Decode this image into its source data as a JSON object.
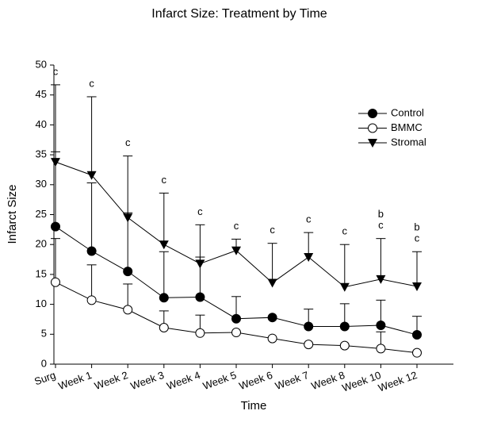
{
  "chart_data": {
    "type": "line",
    "title": "Infarct Size:  Treatment by Time",
    "xlabel": "Time",
    "ylabel": "Infarct Size",
    "categories": [
      "Surg",
      "Week 1",
      "Week 2",
      "Week 3",
      "Week 4",
      "Week 5",
      "Week 6",
      "Week 7",
      "Week 8",
      "Week 10",
      "Week 12"
    ],
    "series": [
      {
        "name": "Control",
        "color": "#000000",
        "marker": "filled-circle",
        "values": [
          23,
          18.9,
          15.5,
          11.1,
          11.2,
          7.6,
          7.8,
          6.3,
          6.3,
          6.5,
          4.9
        ],
        "errors": [
          12.5,
          11.4,
          9.8,
          7.7,
          6.7,
          3.7,
          null,
          2.9,
          3.8,
          4.2,
          3.1
        ]
      },
      {
        "name": "BMMC",
        "color": "#000000",
        "marker": "open-circle",
        "values": [
          13.7,
          10.7,
          9.1,
          6.1,
          5.2,
          5.3,
          4.3,
          3.3,
          3.1,
          2.6,
          1.9
        ],
        "errors": [
          7.3,
          5.9,
          4.3,
          2.8,
          3.0,
          null,
          null,
          null,
          null,
          2.8,
          null
        ]
      },
      {
        "name": "Stromal",
        "color": "#000000",
        "marker": "down-triangle",
        "values": [
          33.8,
          31.6,
          24.5,
          20,
          16.8,
          19,
          13.6,
          17.9,
          12.9,
          14.2,
          13
        ],
        "errors": [
          12.9,
          13.1,
          10.3,
          8.6,
          6.5,
          1.9,
          6.6,
          4.1,
          7.1,
          6.8,
          5.8
        ]
      }
    ],
    "annotations": [
      [
        "c"
      ],
      [
        "c"
      ],
      [
        "c"
      ],
      [
        "c"
      ],
      [
        "c"
      ],
      [
        "c"
      ],
      [
        "c"
      ],
      [
        "c"
      ],
      [
        "c"
      ],
      [
        "b",
        "c"
      ],
      [
        "b",
        "c"
      ]
    ],
    "ylim": [
      0,
      50
    ],
    "yticks": [
      0,
      5,
      10,
      15,
      20,
      25,
      30,
      35,
      40,
      45,
      50
    ],
    "grid": false,
    "legend": "upper right"
  }
}
